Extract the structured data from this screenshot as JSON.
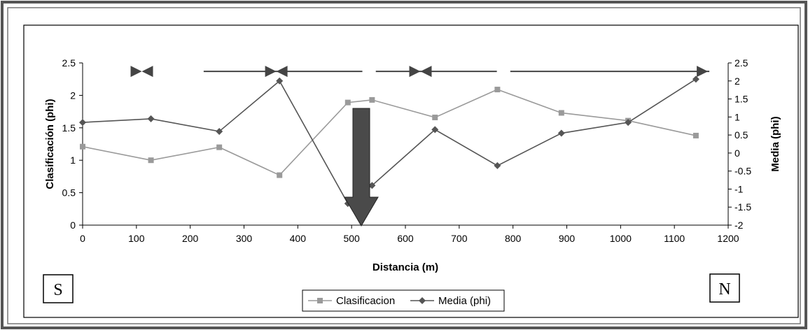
{
  "chart_data": {
    "type": "line",
    "xlabel": "Distancia (m)",
    "ylabel": "Clasificación (phi)",
    "y2label": "Media (phi)",
    "xlim": [
      0,
      1200
    ],
    "ylim": [
      0,
      2.5
    ],
    "y2lim": [
      -2,
      2.5
    ],
    "x_ticks": [
      "0",
      "100",
      "200",
      "300",
      "400",
      "500",
      "600",
      "700",
      "800",
      "900",
      "1000",
      "1100",
      "1200"
    ],
    "y_ticks": [
      "0",
      "0.5",
      "1",
      "1.5",
      "2",
      "2.5"
    ],
    "y2_ticks": [
      "-2",
      "-1.5",
      "-1",
      "-0.5",
      "0",
      "0.5",
      "1",
      "1.5",
      "2",
      "2.5"
    ],
    "grid": false,
    "legend_position": "bottom",
    "series": [
      {
        "name": "Clasificacion",
        "axis": "left",
        "marker": "square",
        "color": "#9a9a9a",
        "x": [
          0,
          127,
          254,
          366,
          493,
          538,
          655,
          771,
          890,
          1014,
          1140
        ],
        "y": [
          1.21,
          1.0,
          1.2,
          0.77,
          1.89,
          1.93,
          1.66,
          2.09,
          1.73,
          1.61,
          1.38
        ]
      },
      {
        "name": "Media (phi)",
        "axis": "right",
        "marker": "diamond",
        "color": "#555555",
        "x": [
          0,
          127,
          254,
          366,
          493,
          538,
          655,
          771,
          890,
          1014,
          1140
        ],
        "y": [
          0.85,
          0.95,
          0.6,
          2.0,
          -1.4,
          -0.9,
          0.65,
          -0.35,
          0.55,
          0.85,
          2.05
        ]
      }
    ],
    "annotations": {
      "transport_arrows": [
        {
          "from": 100,
          "to": 120,
          "style": "convergence"
        },
        {
          "from": 225,
          "to": 370,
          "style": "segment"
        },
        {
          "from": 370,
          "to": 520,
          "style": "segment"
        },
        {
          "from": 545,
          "to": 630,
          "style": "segment"
        },
        {
          "from": 630,
          "to": 770,
          "style": "segment"
        },
        {
          "from": 795,
          "to": 1165,
          "style": "arrow-right"
        }
      ],
      "convergence_points": [
        110,
        360,
        628
      ],
      "big_arrow_x": 518,
      "left_label": "S",
      "right_label": "N"
    }
  }
}
